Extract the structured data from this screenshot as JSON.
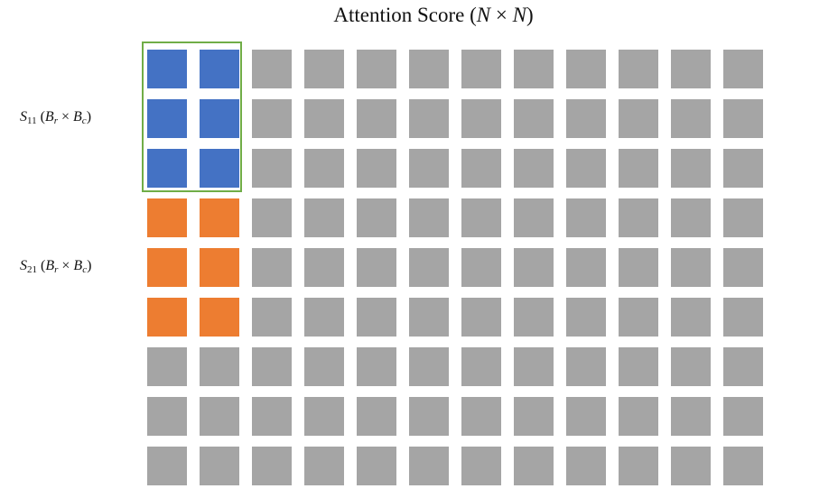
{
  "title": {
    "prefix": "Attention Score (",
    "var1": "N",
    "times": " × ",
    "var2": "N",
    "suffix": ")"
  },
  "labels": {
    "s11": {
      "name": "S",
      "sub": "11",
      "open": " (",
      "br": "B",
      "br_sub": "r",
      "times": " × ",
      "bc": "B",
      "bc_sub": "c",
      "close": ")"
    },
    "s21": {
      "name": "S",
      "sub": "21",
      "open": " (",
      "br": "B",
      "br_sub": "r",
      "times": " × ",
      "bc": "B",
      "bc_sub": "c",
      "close": ")"
    }
  },
  "grid": {
    "rows": 9,
    "cols": 12,
    "blocks": [
      {
        "name": "S11",
        "row_start": 0,
        "row_end": 2,
        "col_start": 0,
        "col_end": 1,
        "color": "#4472c4",
        "highlighted": true
      },
      {
        "name": "S21",
        "row_start": 3,
        "row_end": 5,
        "col_start": 0,
        "col_end": 1,
        "color": "#ed7d31",
        "highlighted": false
      }
    ],
    "default_color": "#a5a5a5",
    "highlight_color": "#70ad47"
  }
}
